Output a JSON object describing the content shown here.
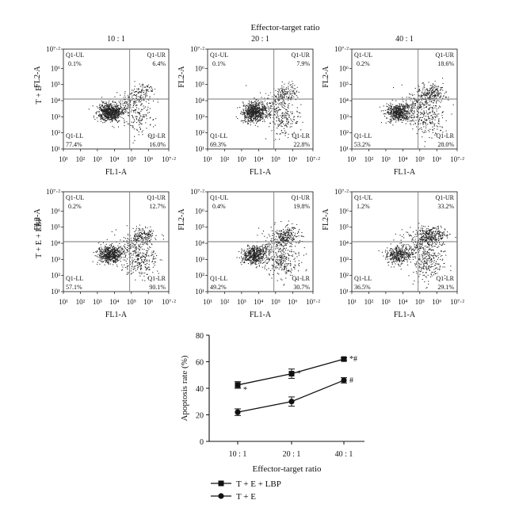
{
  "figure": {
    "top_title": "Effector-target ratio",
    "row_labels": [
      "T + E",
      "T + E + LBP"
    ],
    "flow": {
      "x_label": "FL1-A",
      "y_label": "FL2-A",
      "tick_labels": [
        "10¹",
        "10²",
        "10³",
        "10⁴",
        "10⁵",
        "10⁶",
        "10⁷·²"
      ],
      "gate_x": 4.9,
      "gate_y": 4.1,
      "panels": [
        {
          "row": 0,
          "col": 0,
          "ratio": "10 : 1",
          "UL": "0.1%",
          "UR": "6.4%",
          "LL": "77.4%",
          "LR": "16.0%"
        },
        {
          "row": 0,
          "col": 1,
          "ratio": "20 : 1",
          "UL": "0.1%",
          "UR": "7.9%",
          "LL": "69.3%",
          "LR": "22.8%"
        },
        {
          "row": 0,
          "col": 2,
          "ratio": "40 : 1",
          "UL": "0.2%",
          "UR": "18.6%",
          "LL": "53.2%",
          "LR": "28.0%"
        },
        {
          "row": 1,
          "col": 0,
          "ratio": "",
          "UL": "0.2%",
          "UR": "12.7%",
          "LL": "57.1%",
          "LR": "30.1%"
        },
        {
          "row": 1,
          "col": 1,
          "ratio": "",
          "UL": "0.4%",
          "UR": "19.8%",
          "LL": "49.2%",
          "LR": "30.7%"
        },
        {
          "row": 1,
          "col": 2,
          "ratio": "",
          "UL": "1.2%",
          "UR": "33.2%",
          "LL": "36.5%",
          "LR": "29.1%"
        }
      ],
      "quadrant_names": {
        "UL": "Q1-UL",
        "UR": "Q1-UR",
        "LL": "Q1-LL",
        "LR": "Q1-LR"
      }
    }
  },
  "chart_data": {
    "type": "line",
    "title": "",
    "xlabel": "Effector-target ratio",
    "ylabel": "Apoptosis rate (%)",
    "categories": [
      "10 : 1",
      "20 : 1",
      "40 : 1"
    ],
    "ylim": [
      0,
      80
    ],
    "yticks": [
      0,
      20,
      40,
      60,
      80
    ],
    "legend_position": "bottom-left",
    "grid": false,
    "series": [
      {
        "name": "T + E + LBP",
        "marker": "square",
        "values": [
          42.5,
          51,
          62
        ],
        "errors": [
          2.5,
          3.5,
          1
        ],
        "annotations": [
          "*",
          "*",
          "*#"
        ]
      },
      {
        "name": "T + E",
        "marker": "circle",
        "values": [
          22,
          30,
          46
        ],
        "errors": [
          2.5,
          3.5,
          2
        ],
        "annotations": [
          "",
          "",
          "#"
        ]
      }
    ]
  }
}
